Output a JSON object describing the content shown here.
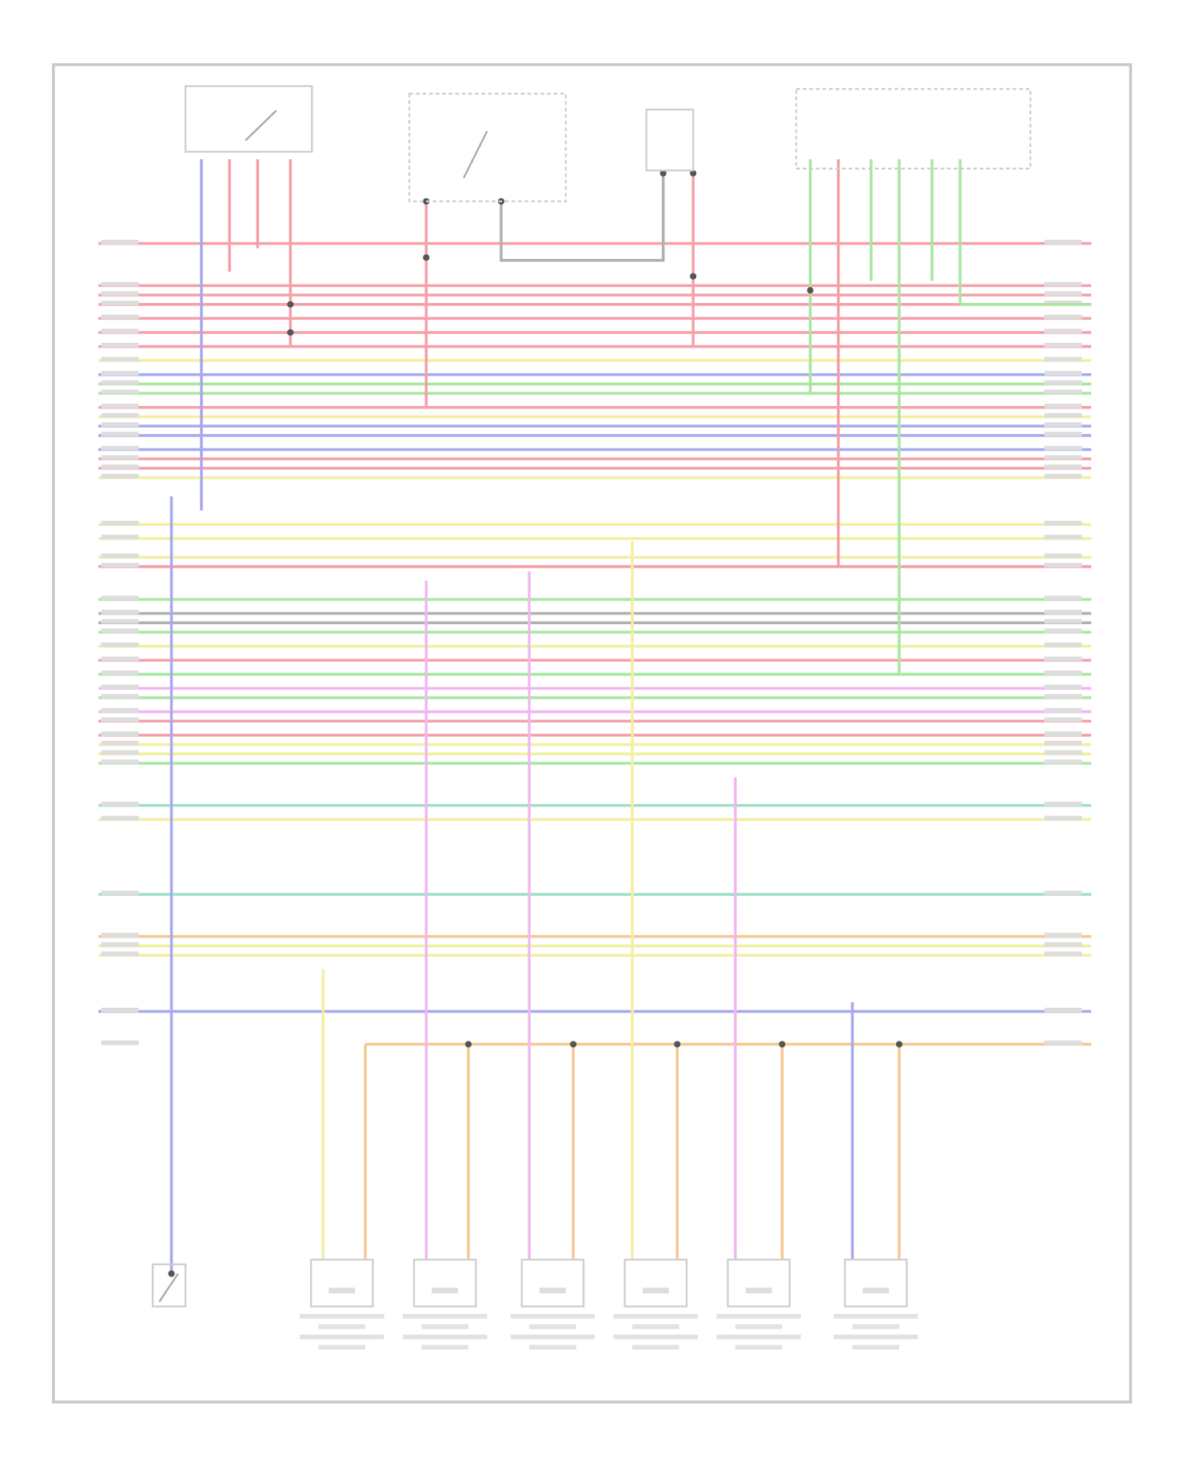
{
  "diagram": {
    "frame_color": "#c8c8c8",
    "component_color": "#cfcfcf",
    "wire_colors": {
      "red": "#f5a0a8",
      "yellow": "#f3efa0",
      "blue": "#a8a8f0",
      "green": "#a8e8a0",
      "gray": "#b0b0b0",
      "pink": "#f0b8f0",
      "orange": "#f5c890",
      "teal": "#a0e0c8"
    },
    "horizontal_wires": [
      "red",
      "red",
      "red",
      "red",
      "red",
      "red",
      "red",
      "yellow",
      "blue",
      "green",
      "green",
      "red",
      "yellow",
      "blue",
      "blue",
      "blue",
      "red",
      "red",
      "yellow",
      "yellow",
      "yellow",
      "yellow",
      "red",
      "green",
      "gray",
      "gray",
      "green",
      "yellow",
      "red",
      "green",
      "pink",
      "green",
      "pink",
      "red",
      "red",
      "yellow",
      "yellow",
      "green",
      "teal",
      "yellow",
      "teal",
      "orange",
      "yellow",
      "yellow",
      "blue",
      "orange"
    ],
    "components": [
      {
        "icon": "switch-icon"
      },
      {
        "icon": "relay-icon"
      },
      {
        "icon": "sensor-icon"
      },
      {
        "icon": "module-icon"
      },
      {
        "icon": "actuator-icon",
        "count": 6
      },
      {
        "icon": "switch-icon"
      }
    ]
  }
}
